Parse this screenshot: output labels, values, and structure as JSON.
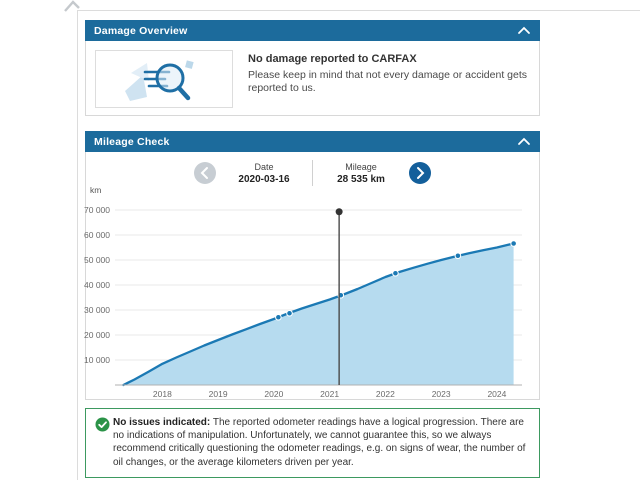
{
  "page": {
    "damage_panel": {
      "title": "Damage Overview",
      "headline": "No damage reported to CARFAX",
      "body": "Please keep in mind that not every damage or accident gets reported to us."
    },
    "mileage_panel": {
      "title": "Mileage Check",
      "date_label": "Date",
      "date_value": "2020-03-16",
      "mileage_label": "Mileage",
      "mileage_value": "28 535 km"
    },
    "note": {
      "prefix": "No issues indicated:",
      "body": " The reported odometer readings have a logical progression. There are no indications of manipulation. Unfortunately, we cannot guarantee this, so we always recommend critically questioning the odometer readings, e.g. on signs of wear, the number of oil changes, or the average kilometers driven per year."
    }
  },
  "chart_data": {
    "type": "area",
    "title": "Mileage Check",
    "ylabel": "km",
    "xlabel": "",
    "ylim": [
      0,
      70000
    ],
    "xlim": [
      2017.15,
      2024.45
    ],
    "yticks": [
      10000,
      20000,
      30000,
      40000,
      50000,
      60000,
      70000
    ],
    "xticks": [
      2018,
      2019,
      2020,
      2021,
      2022,
      2023,
      2024
    ],
    "grid": true,
    "legend": "none",
    "line_color": "#1b79b4",
    "fill_color": "#b6dbef",
    "curve": {
      "x": [
        2017.3,
        2017.5,
        2017.75,
        2018,
        2018.25,
        2018.5,
        2018.75,
        2019,
        2019.25,
        2019.5,
        2019.75,
        2020,
        2020.25,
        2020.5,
        2020.75,
        2021,
        2021.25,
        2021.5,
        2021.75,
        2022,
        2022.25,
        2022.5,
        2022.75,
        2023,
        2023.25,
        2023.5,
        2023.75,
        2024,
        2024.3
      ],
      "y": [
        0,
        2200,
        5300,
        8500,
        11000,
        13400,
        15800,
        18000,
        20200,
        22300,
        24400,
        26400,
        28600,
        30600,
        32400,
        34200,
        36200,
        38400,
        40800,
        43200,
        45200,
        46900,
        48500,
        50000,
        51400,
        52700,
        53900,
        55000,
        56600
      ]
    },
    "readings": [
      {
        "x": 2020.08,
        "km": 27100
      },
      {
        "x": 2020.28,
        "km": 28700
      },
      {
        "x": 2021.2,
        "km": 35900
      },
      {
        "x": 2022.18,
        "km": 44700
      },
      {
        "x": 2023.3,
        "km": 51700
      },
      {
        "x": 2024.3,
        "km": 56600
      }
    ],
    "marker": {
      "x": 2021.17,
      "top_km": 69300
    },
    "selected": {
      "date": "2020-03-16",
      "mileage": "28 535 km",
      "mileage_km": 28535
    }
  }
}
